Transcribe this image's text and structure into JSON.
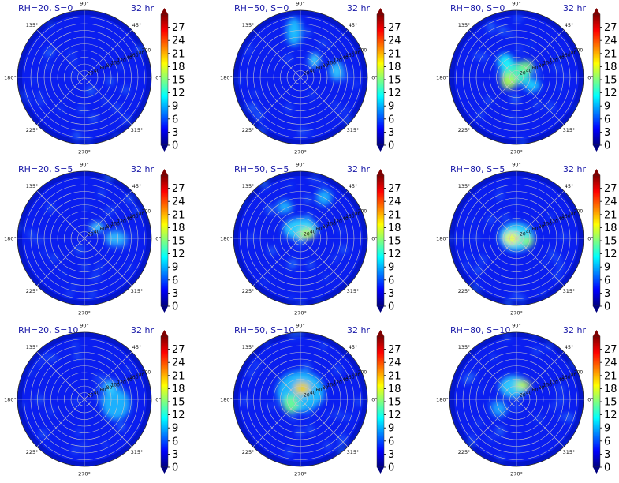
{
  "chart_data": [
    {
      "type": "heatmap",
      "subtype": "polar",
      "title": "RH=20, S=0",
      "time_label": "32 hr",
      "blobs": []
    },
    {
      "type": "heatmap",
      "subtype": "polar",
      "title": "RH=50, S=0",
      "time_label": "32 hr",
      "blobs": []
    },
    {
      "type": "heatmap",
      "subtype": "polar",
      "title": "RH=80, S=0",
      "time_label": "32 hr",
      "blobs": []
    },
    {
      "type": "heatmap",
      "subtype": "polar",
      "title": "RH=20, S=5",
      "time_label": "32 hr",
      "blobs": []
    },
    {
      "type": "heatmap",
      "subtype": "polar",
      "title": "RH=50, S=5",
      "time_label": "32 hr",
      "blobs": []
    },
    {
      "type": "heatmap",
      "subtype": "polar",
      "title": "RH=80, S=5",
      "time_label": "32 hr",
      "blobs": []
    },
    {
      "type": "heatmap",
      "subtype": "polar",
      "title": "RH=20, S=10",
      "time_label": "32 hr",
      "blobs": []
    },
    {
      "type": "heatmap",
      "subtype": "polar",
      "title": "RH=50, S=10",
      "time_label": "32 hr",
      "blobs": []
    },
    {
      "type": "heatmap",
      "subtype": "polar",
      "title": "RH=80, S=10",
      "time_label": "32 hr",
      "blobs": []
    }
  ],
  "angle_ticks": [
    "0°",
    "45°",
    "90°",
    "135°",
    "180°",
    "225°",
    "270°",
    "315°"
  ],
  "radial_ticks": [
    "20",
    "40",
    "60",
    "80",
    "100",
    "120",
    "140",
    "160",
    "180",
    "200"
  ],
  "colorbar": {
    "ticks": [
      "0",
      "3",
      "6",
      "9",
      "12",
      "15",
      "18",
      "21",
      "24",
      "27"
    ],
    "min": 0,
    "max": 30,
    "extend": "both"
  },
  "colormap": [
    "#00007f",
    "#0000ff",
    "#007fff",
    "#00ffff",
    "#7fff7f",
    "#ffff00",
    "#ff7f00",
    "#ff0000",
    "#7f0000"
  ],
  "grid": true
}
